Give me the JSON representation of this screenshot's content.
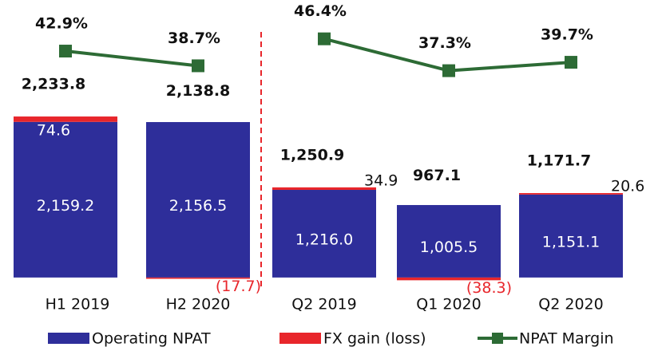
{
  "chart_data": {
    "type": "bar",
    "categories": [
      "H1 2019",
      "H2 2020",
      "Q2 2019",
      "Q1 2020",
      "Q2 2020"
    ],
    "stacked": true,
    "divider_after": 1,
    "ylim": [
      -300,
      3850
    ],
    "y2lim": [
      -28,
      57.5
    ],
    "series": [
      {
        "name": "Operating NPAT",
        "color": "#2e2e9a",
        "values": [
          2159.2,
          2156.5,
          1216.0,
          1005.5,
          1151.1
        ],
        "value_labels": [
          "2,159.2",
          "2,156.5",
          "1,216.0",
          "1,005.5",
          "1,151.1"
        ]
      },
      {
        "name": "FX gain (loss)",
        "color": "#e8262b",
        "values": [
          74.6,
          -17.7,
          34.9,
          -38.3,
          20.6
        ],
        "value_labels": [
          "74.6",
          "(17.7)",
          "34.9",
          "(38.3)",
          "20.6"
        ]
      },
      {
        "name": "NPAT Margin",
        "type": "line",
        "axis": "y2",
        "color": "#2d6b35",
        "values": [
          42.9,
          38.7,
          46.4,
          37.3,
          39.7
        ],
        "value_labels": [
          "42.9%",
          "38.7%",
          "46.4%",
          "37.3%",
          "39.7%"
        ]
      }
    ],
    "totals": {
      "values": [
        2233.8,
        2138.8,
        1250.9,
        967.1,
        1171.7
      ],
      "value_labels": [
        "2,233.8",
        "2,138.8",
        "1,250.9",
        "967.1",
        "1,171.7"
      ]
    }
  }
}
